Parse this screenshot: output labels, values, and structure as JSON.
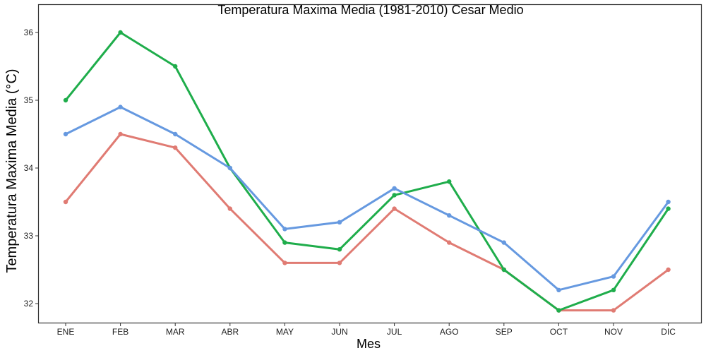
{
  "chart_data": {
    "type": "line",
    "title": "Temperatura Maxima Media (1981-2010)  Cesar Medio",
    "xlabel": "Mes",
    "ylabel": "Temperatura Maxima Media  (°C)",
    "categories": [
      "ENE",
      "FEB",
      "MAR",
      "ABR",
      "MAY",
      "JUN",
      "JUL",
      "AGO",
      "SEP",
      "OCT",
      "NOV",
      "DIC"
    ],
    "yticks": [
      32,
      33,
      34,
      35,
      36
    ],
    "ylim": [
      31.7,
      36.2
    ],
    "grid": false,
    "legend": "none",
    "series": [
      {
        "color": "#E07B73",
        "values": [
          33.5,
          34.5,
          34.3,
          33.4,
          32.6,
          32.6,
          33.4,
          32.9,
          32.5,
          31.9,
          31.9,
          32.5
        ]
      },
      {
        "color": "#1FAD4B",
        "values": [
          35.0,
          36.0,
          35.5,
          34.0,
          32.9,
          32.8,
          33.6,
          33.8,
          32.5,
          31.9,
          32.2,
          33.4
        ]
      },
      {
        "color": "#6699E0",
        "values": [
          34.5,
          34.9,
          34.5,
          34.0,
          33.1,
          33.2,
          33.7,
          33.3,
          32.9,
          32.2,
          32.4,
          33.5
        ]
      }
    ]
  }
}
